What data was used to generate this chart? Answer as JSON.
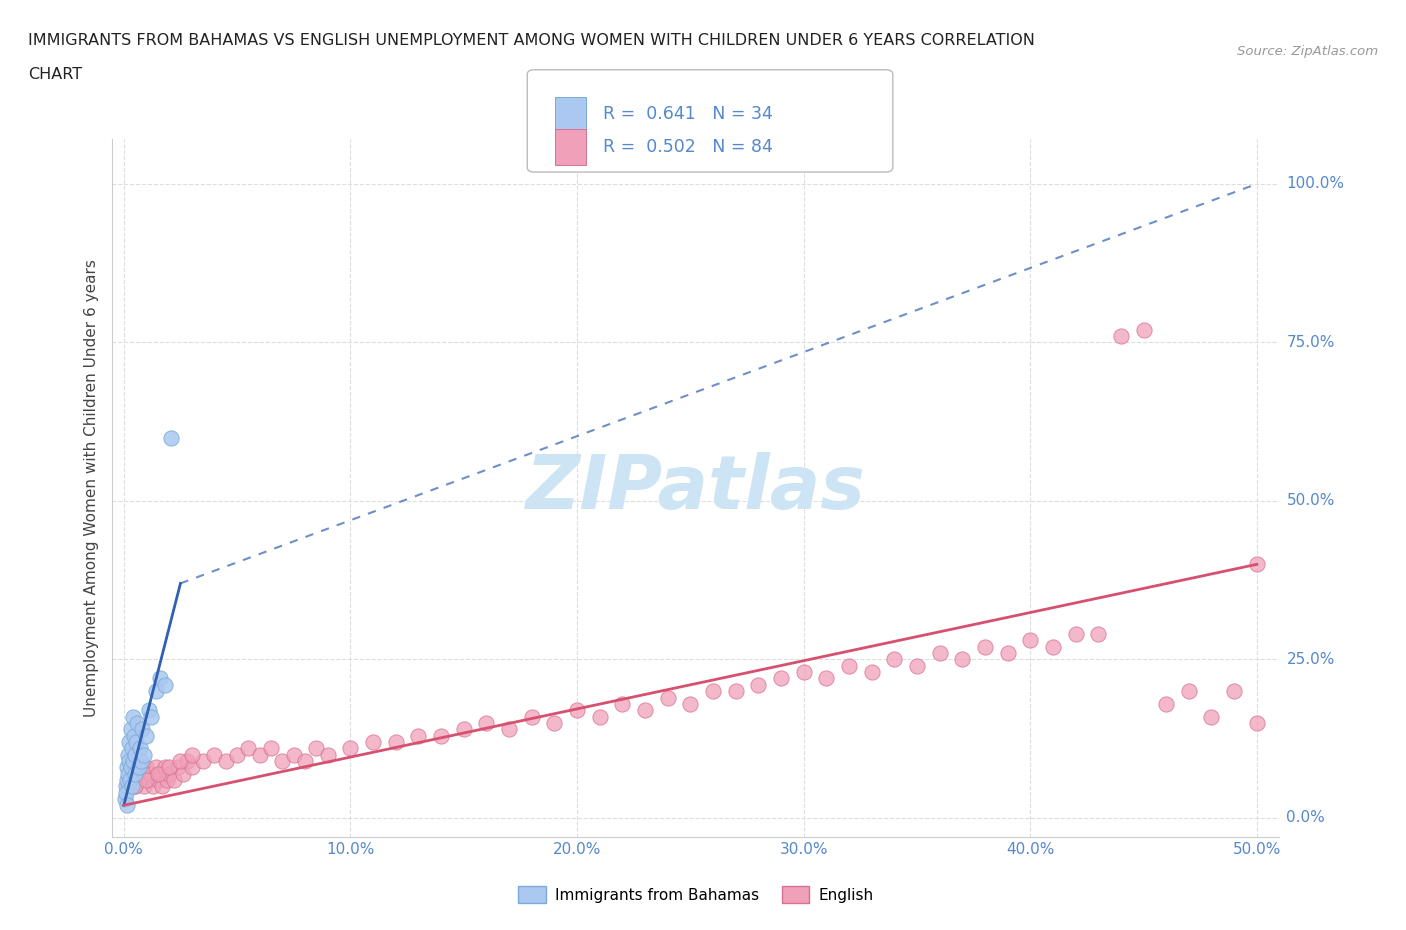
{
  "title_line1": "IMMIGRANTS FROM BAHAMAS VS ENGLISH UNEMPLOYMENT AMONG WOMEN WITH CHILDREN UNDER 6 YEARS CORRELATION",
  "title_line2": "CHART",
  "source_text": "Source: ZipAtlas.com",
  "ylabel": "Unemployment Among Women with Children Under 6 years",
  "x_tick_labels": [
    "0.0%",
    "10.0%",
    "20.0%",
    "30.0%",
    "40.0%",
    "50.0%"
  ],
  "y_tick_labels": [
    "0.0%",
    "25.0%",
    "50.0%",
    "75.0%",
    "100.0%"
  ],
  "x_ticks": [
    0,
    10,
    20,
    30,
    40,
    50
  ],
  "y_ticks": [
    0,
    25,
    50,
    75,
    100
  ],
  "xlim": [
    -0.5,
    51
  ],
  "ylim": [
    -3,
    107
  ],
  "legend_r1": "R =  0.641",
  "legend_n1": "N = 34",
  "legend_r2": "R =  0.502",
  "legend_n2": "N = 84",
  "color_bahamas": "#aac8f0",
  "color_bahamas_edge": "#7aaad8",
  "color_english": "#f0a0b8",
  "color_english_edge": "#d87090",
  "color_reg_bahamas": "#3060b0",
  "color_reg_english": "#d85070",
  "watermark_color": "#cce4f4",
  "background_color": "#ffffff",
  "grid_color": "#dddddd",
  "tick_color": "#5588cc",
  "title_color": "#222222",
  "source_color": "#999999",
  "bahamas_x": [
    0.05,
    0.08,
    0.1,
    0.12,
    0.15,
    0.18,
    0.2,
    0.22,
    0.25,
    0.28,
    0.3,
    0.32,
    0.35,
    0.38,
    0.4,
    0.42,
    0.45,
    0.48,
    0.5,
    0.55,
    0.6,
    0.65,
    0.7,
    0.75,
    0.8,
    0.9,
    1.0,
    1.1,
    1.2,
    1.4,
    1.6,
    1.8,
    2.1,
    0.15
  ],
  "bahamas_y": [
    3,
    5,
    4,
    6,
    8,
    10,
    7,
    9,
    12,
    6,
    14,
    8,
    11,
    5,
    16,
    9,
    13,
    7,
    10,
    12,
    15,
    8,
    11,
    9,
    14,
    10,
    13,
    17,
    16,
    20,
    22,
    21,
    60,
    2
  ],
  "english_x": [
    0.2,
    0.3,
    0.4,
    0.5,
    0.6,
    0.7,
    0.8,
    0.9,
    1.0,
    1.1,
    1.2,
    1.3,
    1.4,
    1.5,
    1.6,
    1.7,
    1.8,
    1.9,
    2.0,
    2.2,
    2.4,
    2.6,
    2.8,
    3.0,
    3.5,
    4.0,
    4.5,
    5.0,
    5.5,
    6.0,
    6.5,
    7.0,
    7.5,
    8.0,
    8.5,
    9.0,
    10.0,
    11.0,
    12.0,
    13.0,
    14.0,
    15.0,
    16.0,
    17.0,
    18.0,
    19.0,
    20.0,
    21.0,
    22.0,
    23.0,
    24.0,
    25.0,
    26.0,
    27.0,
    28.0,
    29.0,
    30.0,
    31.0,
    32.0,
    33.0,
    34.0,
    35.0,
    36.0,
    37.0,
    38.0,
    39.0,
    40.0,
    41.0,
    42.0,
    43.0,
    44.0,
    45.0,
    46.0,
    47.0,
    48.0,
    49.0,
    50.0,
    0.5,
    1.0,
    1.5,
    2.0,
    2.5,
    3.0,
    50.0
  ],
  "english_y": [
    5,
    6,
    7,
    5,
    8,
    6,
    7,
    5,
    8,
    6,
    7,
    5,
    8,
    6,
    7,
    5,
    8,
    6,
    7,
    6,
    8,
    7,
    9,
    8,
    9,
    10,
    9,
    10,
    11,
    10,
    11,
    9,
    10,
    9,
    11,
    10,
    11,
    12,
    12,
    13,
    13,
    14,
    15,
    14,
    16,
    15,
    17,
    16,
    18,
    17,
    19,
    18,
    20,
    20,
    21,
    22,
    23,
    22,
    24,
    23,
    25,
    24,
    26,
    25,
    27,
    26,
    28,
    27,
    29,
    29,
    76,
    77,
    18,
    20,
    16,
    20,
    40,
    5,
    6,
    7,
    8,
    9,
    10,
    15
  ],
  "reg_bahamas_x0": 0,
  "reg_bahamas_x1": 2.5,
  "reg_bahamas_y0": 2,
  "reg_bahamas_y1": 37,
  "reg_bahamas_dashed_x0": 2.5,
  "reg_bahamas_dashed_x1": 50,
  "reg_bahamas_dashed_y0": 37,
  "reg_bahamas_dashed_y1": 100,
  "reg_english_x0": 0,
  "reg_english_x1": 50,
  "reg_english_y0": 2,
  "reg_english_y1": 40
}
